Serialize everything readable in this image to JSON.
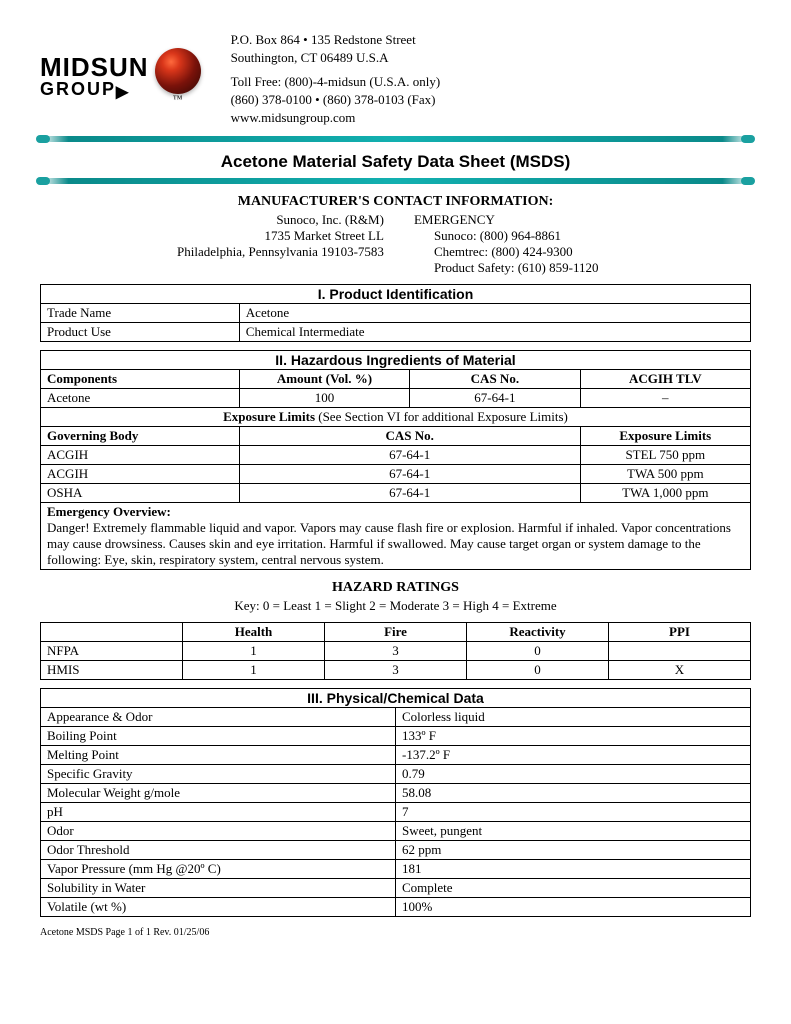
{
  "header": {
    "logo": {
      "mid": "MID",
      "sun": "SUN",
      "group": "GROUP",
      "tm": "™"
    },
    "address1": "P.O. Box 864 • 135 Redstone Street",
    "address2": "Southington, CT 06489 U.S.A",
    "tollfree": "Toll Free: (800)-4-midsun (U.S.A. only)",
    "phones": "(860) 378-0100 • (860) 378-0103 (Fax)",
    "web": "www.midsungroup.com"
  },
  "title": "Acetone Material Safety Data Sheet (MSDS)",
  "mfr": {
    "heading": "MANUFACTURER'S CONTACT INFORMATION:",
    "left": [
      "Sunoco, Inc. (R&M)",
      "1735 Market Street LL",
      "Philadelphia, Pennsylvania 19103-7583"
    ],
    "right_head": "EMERGENCY",
    "right": [
      "Sunoco: (800) 964-8861",
      "Chemtrec: (800) 424-9300",
      "Product Safety: (610) 859-1120"
    ]
  },
  "sec1": {
    "title": "I. Product Identification",
    "rows": [
      [
        "Trade Name",
        "Acetone"
      ],
      [
        "Product Use",
        "Chemical Intermediate"
      ]
    ]
  },
  "sec2": {
    "title": "II. Hazardous Ingredients of Material",
    "cols": [
      "Components",
      "Amount (Vol. %)",
      "CAS No.",
      "ACGIH TLV"
    ],
    "row": [
      "Acetone",
      "100",
      "67-64-1",
      "–"
    ],
    "exp_title": "Exposure Limits",
    "exp_note": " (See Section VI for additional Exposure Limits)",
    "exp_cols": [
      "Governing Body",
      "CAS No.",
      "Exposure Limits"
    ],
    "exp_rows": [
      [
        "ACGIH",
        "67-64-1",
        "STEL  750 ppm"
      ],
      [
        "ACGIH",
        "67-64-1",
        "TWA   500 ppm"
      ],
      [
        "OSHA",
        "67-64-1",
        "TWA  1,000 ppm"
      ]
    ],
    "emergency_head": "Emergency Overview:",
    "emergency_text": "Danger! Extremely flammable liquid and vapor. Vapors may cause flash fire or explosion. Harmful if inhaled. Vapor concentrations may cause drowsiness. Causes skin and eye irritation. Harmful if swallowed. May cause target organ or system damage to the following: Eye, skin, respiratory system, central nervous system."
  },
  "hazard": {
    "title": "HAZARD RATINGS",
    "key": "Key: 0 = Least   1 = Slight   2 = Moderate   3 = High   4 = Extreme",
    "cols": [
      "",
      "Health",
      "Fire",
      "Reactivity",
      "PPI"
    ],
    "rows": [
      [
        "NFPA",
        "1",
        "3",
        "0",
        ""
      ],
      [
        "HMIS",
        "1",
        "3",
        "0",
        "X"
      ]
    ]
  },
  "sec3": {
    "title": "III. Physical/Chemical Data",
    "rows": [
      [
        "Appearance & Odor",
        "Colorless liquid"
      ],
      [
        "Boiling Point",
        "133º F"
      ],
      [
        "Melting Point",
        "-137.2º F"
      ],
      [
        "Specific Gravity",
        "0.79"
      ],
      [
        "Molecular Weight g/mole",
        "58.08"
      ],
      [
        "pH",
        "7"
      ],
      [
        "Odor",
        "Sweet, pungent"
      ],
      [
        "Odor Threshold",
        "62 ppm"
      ],
      [
        "Vapor Pressure  (mm Hg @20º C)",
        "181"
      ],
      [
        "Solubility in Water",
        "Complete"
      ],
      [
        "Volatile (wt %)",
        "100%"
      ]
    ]
  },
  "footer": "Acetone MSDS     Page 1 of 1     Rev. 01/25/06"
}
